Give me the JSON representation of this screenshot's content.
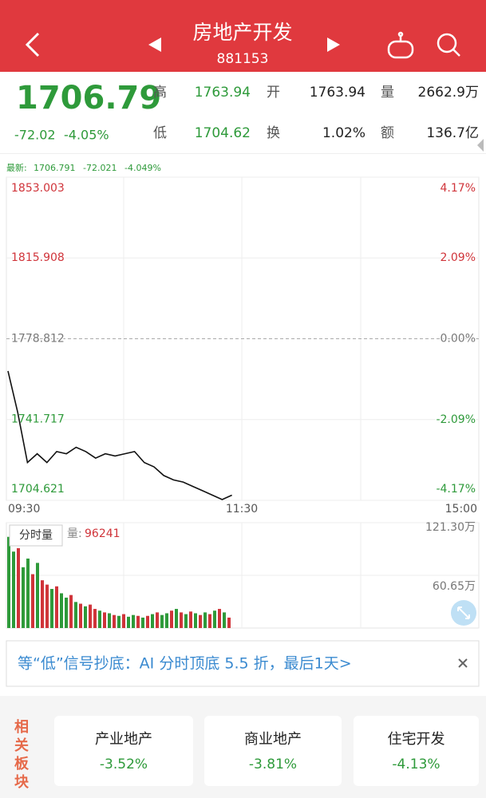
{
  "header": {
    "title": "房地产开发",
    "code": "881153"
  },
  "quote": {
    "price": "1706.79",
    "change": "-72.02",
    "change_pct": "-4.05%",
    "fields": [
      {
        "label": "高",
        "value": "1763.94"
      },
      {
        "label": "开",
        "value": "1763.94"
      },
      {
        "label": "量",
        "value": "2662.9万"
      },
      {
        "label": "低",
        "value": "1704.62"
      },
      {
        "label": "换",
        "value": "1.02%"
      },
      {
        "label": "额",
        "value": "136.7亿"
      }
    ]
  },
  "latest": {
    "label": "最新:",
    "price": "1706.791",
    "change": "-72.021",
    "change_pct": "-4.049%"
  },
  "intraday": {
    "type": "line",
    "color": "#111111",
    "ylim": [
      1704.621,
      1853.003
    ],
    "yticks": [
      1853.003,
      1815.908,
      1778.812,
      1741.717,
      1704.621
    ],
    "y2lim": [
      -4.17,
      4.17
    ],
    "y2ticks": [
      {
        "value": 4.17,
        "label": "4.17%"
      },
      {
        "value": 2.09,
        "label": "2.09%"
      },
      {
        "value": 0,
        "label": "0.00%"
      },
      {
        "value": -2.09,
        "label": "-2.09%"
      },
      {
        "value": -4.17,
        "label": "-4.17%"
      }
    ],
    "xticks": [
      "09:30",
      "11:30",
      "15:00"
    ],
    "values": [
      1764,
      1745,
      1722,
      1726,
      1722,
      1727,
      1726,
      1729,
      1727,
      1724,
      1726,
      1725,
      1726,
      1727,
      1722,
      1720,
      1716,
      1714,
      1713,
      1711,
      1709,
      1707,
      1705,
      1707
    ]
  },
  "volume": {
    "type": "bar",
    "label": "分时量",
    "volume_label": "量:",
    "volume": "96241",
    "ylim": [
      0,
      121.3
    ],
    "yticks": [
      {
        "value": 121.3,
        "label": "121.30万"
      },
      {
        "value": 60.65,
        "label": "60.65万"
      }
    ],
    "values": [
      105,
      88,
      92,
      70,
      80,
      62,
      75,
      55,
      50,
      45,
      48,
      40,
      35,
      38,
      30,
      28,
      25,
      27,
      22,
      20,
      18,
      17,
      15,
      14,
      16,
      13,
      15,
      14,
      12,
      14,
      16,
      18,
      15,
      17,
      20,
      22,
      18,
      16,
      19,
      17,
      15,
      18,
      16,
      20,
      22,
      18,
      12
    ],
    "colors": [
      "#2e9a3a",
      "#2e9a3a",
      "#d0343a",
      "#2e9a3a",
      "#2e9a3a",
      "#d0343a",
      "#2e9a3a",
      "#d0343a",
      "#d0343a",
      "#2e9a3a",
      "#d0343a",
      "#2e9a3a",
      "#2e9a3a",
      "#d0343a",
      "#2e9a3a",
      "#d0343a",
      "#2e9a3a",
      "#d0343a",
      "#d0343a",
      "#2e9a3a",
      "#d0343a",
      "#2e9a3a",
      "#d0343a",
      "#2e9a3a",
      "#d0343a",
      "#2e9a3a",
      "#2e9a3a",
      "#d0343a",
      "#2e9a3a",
      "#d0343a",
      "#2e9a3a",
      "#d0343a",
      "#2e9a3a",
      "#2e9a3a",
      "#d0343a",
      "#2e9a3a",
      "#d0343a",
      "#2e9a3a",
      "#d0343a",
      "#2e9a3a",
      "#d0343a",
      "#2e9a3a",
      "#d0343a",
      "#2e9a3a",
      "#d0343a",
      "#2e9a3a",
      "#d0343a"
    ]
  },
  "banner": {
    "text": "等“低”信号抄底：AI 分时顶底 5.5 折，最后1天>"
  },
  "related": {
    "title": "相关板块",
    "items": [
      {
        "name": "产业地产",
        "change": "-3.52%"
      },
      {
        "name": "商业地产",
        "change": "-3.81%"
      },
      {
        "name": "住宅开发",
        "change": "-4.13%"
      }
    ]
  }
}
